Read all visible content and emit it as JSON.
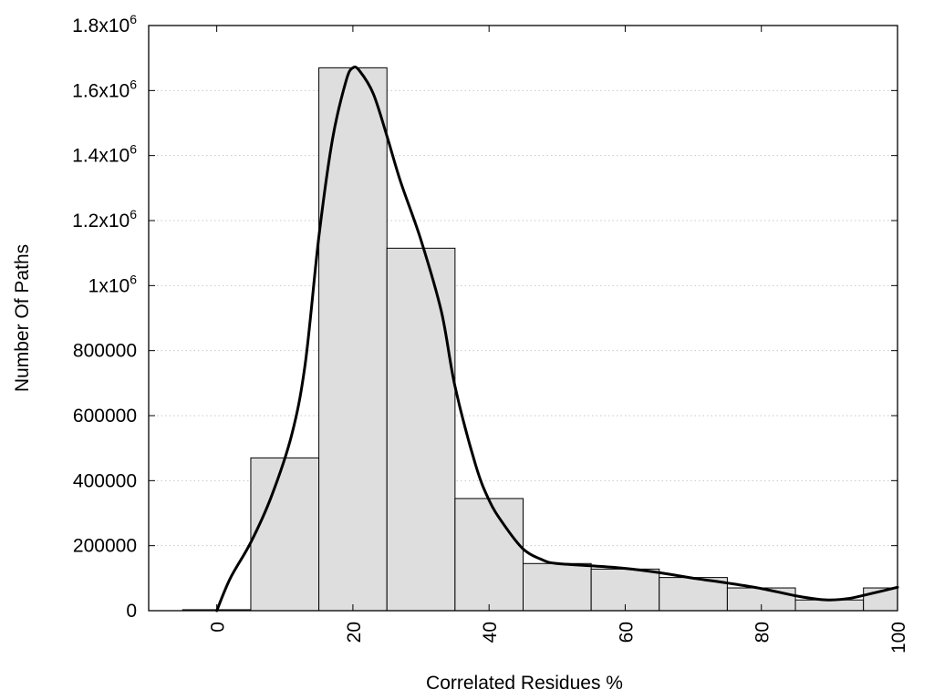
{
  "chart_data": {
    "type": "bar",
    "xlabel": "Correlated Residues %",
    "ylabel": "Number Of Paths",
    "xlim": [
      -10,
      100
    ],
    "ylim": [
      0,
      1800000
    ],
    "grid": true,
    "x_ticks": [
      {
        "value": 0,
        "label": "0"
      },
      {
        "value": 20,
        "label": "20"
      },
      {
        "value": 40,
        "label": "40"
      },
      {
        "value": 60,
        "label": "60"
      },
      {
        "value": 80,
        "label": "80"
      },
      {
        "value": 100,
        "label": "100"
      }
    ],
    "y_ticks": [
      {
        "value": 0,
        "mantissa": "0",
        "exponent": ""
      },
      {
        "value": 200000,
        "mantissa": "200000",
        "exponent": ""
      },
      {
        "value": 400000,
        "mantissa": "400000",
        "exponent": ""
      },
      {
        "value": 600000,
        "mantissa": "600000",
        "exponent": ""
      },
      {
        "value": 800000,
        "mantissa": "800000",
        "exponent": ""
      },
      {
        "value": 1000000,
        "mantissa": "1x10",
        "exponent": "6"
      },
      {
        "value": 1200000,
        "mantissa": "1.2x10",
        "exponent": "6"
      },
      {
        "value": 1400000,
        "mantissa": "1.4x10",
        "exponent": "6"
      },
      {
        "value": 1600000,
        "mantissa": "1.6x10",
        "exponent": "6"
      },
      {
        "value": 1800000,
        "mantissa": "1.8x10",
        "exponent": "6"
      }
    ],
    "bin_width": 10,
    "bars": [
      {
        "x": 0,
        "value": 3000
      },
      {
        "x": 10,
        "value": 470000
      },
      {
        "x": 20,
        "value": 1670000
      },
      {
        "x": 30,
        "value": 1115000
      },
      {
        "x": 40,
        "value": 345000
      },
      {
        "x": 50,
        "value": 145000
      },
      {
        "x": 60,
        "value": 128000
      },
      {
        "x": 70,
        "value": 102000
      },
      {
        "x": 80,
        "value": 70000
      },
      {
        "x": 90,
        "value": 33000
      },
      {
        "x": 100,
        "value": 70000
      }
    ],
    "curve": [
      {
        "x": 0,
        "y": 0
      },
      {
        "x": 2,
        "y": 100000
      },
      {
        "x": 5,
        "y": 210000
      },
      {
        "x": 8,
        "y": 350000
      },
      {
        "x": 11,
        "y": 540000
      },
      {
        "x": 13,
        "y": 760000
      },
      {
        "x": 15,
        "y": 1150000
      },
      {
        "x": 17,
        "y": 1450000
      },
      {
        "x": 19,
        "y": 1630000
      },
      {
        "x": 20,
        "y": 1670000
      },
      {
        "x": 21,
        "y": 1660000
      },
      {
        "x": 23,
        "y": 1590000
      },
      {
        "x": 25,
        "y": 1460000
      },
      {
        "x": 27,
        "y": 1320000
      },
      {
        "x": 30,
        "y": 1140000
      },
      {
        "x": 33,
        "y": 920000
      },
      {
        "x": 35,
        "y": 690000
      },
      {
        "x": 38,
        "y": 450000
      },
      {
        "x": 40,
        "y": 340000
      },
      {
        "x": 42,
        "y": 270000
      },
      {
        "x": 45,
        "y": 190000
      },
      {
        "x": 48,
        "y": 155000
      },
      {
        "x": 50,
        "y": 145000
      },
      {
        "x": 55,
        "y": 138000
      },
      {
        "x": 60,
        "y": 130000
      },
      {
        "x": 65,
        "y": 117000
      },
      {
        "x": 70,
        "y": 100000
      },
      {
        "x": 75,
        "y": 85000
      },
      {
        "x": 80,
        "y": 68000
      },
      {
        "x": 85,
        "y": 46000
      },
      {
        "x": 88,
        "y": 36000
      },
      {
        "x": 90,
        "y": 33000
      },
      {
        "x": 93,
        "y": 38000
      },
      {
        "x": 96,
        "y": 52000
      },
      {
        "x": 100,
        "y": 72000
      }
    ],
    "colors": {
      "bar_fill": "#dedede",
      "bar_stroke": "#000000",
      "curve": "#000000",
      "grid": "#c8c8c8"
    }
  }
}
